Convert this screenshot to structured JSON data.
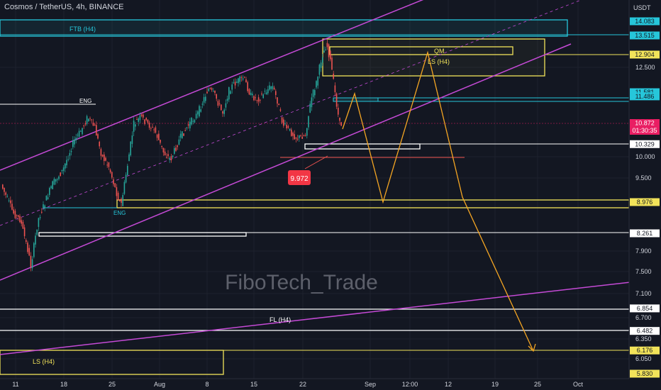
{
  "header": {
    "symbol_title": "Cosmos / TetherUS, 4h, BINANCE",
    "currency": "USDT"
  },
  "watermark": "FiboTech_Trade",
  "colors": {
    "background": "#131722",
    "candle_up": "#26a69a",
    "candle_down": "#ef5350",
    "channel": "#c54ad6",
    "zone_yellow": "#f2e35a",
    "zone_cyan": "#26c6da",
    "projection": "#f5a623",
    "white_zone": "#ffffff",
    "current_price_bg": "#e91e63"
  },
  "chart_data": {
    "type": "candlestick",
    "symbol": "ATOMUSDT",
    "timeframe": "4h",
    "x_ticks": [
      "11",
      "18",
      "25",
      "Aug",
      "8",
      "15",
      "22",
      "Sep",
      "12:00",
      "12",
      "19",
      "25",
      "Oct"
    ],
    "y_ticks": [
      12.5,
      10.0,
      9.5,
      7.9,
      7.5,
      7.1,
      6.7,
      6.35,
      6.05
    ],
    "y_tick_labels": [
      "12.500",
      "10.000",
      "9.500",
      "7.900",
      "7.500",
      "7.100",
      "6.700",
      "6.350",
      "6.050"
    ],
    "price_tags": [
      {
        "label": "14.083",
        "value": 14.083,
        "style": "cyan"
      },
      {
        "label": "13.515",
        "value": 13.515,
        "style": "cyan"
      },
      {
        "label": "12.904",
        "value": 12.904,
        "style": "yellow"
      },
      {
        "label": "11.581",
        "value": 11.581,
        "style": "cyan"
      },
      {
        "label": "11.486",
        "value": 11.486,
        "style": "cyan"
      },
      {
        "label": "10.872",
        "value": 10.872,
        "style": "current",
        "countdown": "01:30:35"
      },
      {
        "label": "10.329",
        "value": 10.329,
        "style": "white"
      },
      {
        "label": "8.976",
        "value": 8.976,
        "style": "yellow"
      },
      {
        "label": "8.261",
        "value": 8.261,
        "style": "white"
      },
      {
        "label": "6.854",
        "value": 6.854,
        "style": "white"
      },
      {
        "label": "6.482",
        "value": 6.482,
        "style": "white"
      },
      {
        "label": "6.176",
        "value": 6.176,
        "style": "yellow"
      },
      {
        "label": "5.830",
        "value": 5.83,
        "style": "yellow"
      }
    ],
    "annotations": {
      "ftb": "FTB (H4)",
      "qm": "QM",
      "ls_top": "LS (H4)",
      "eng_top": "ENG",
      "eng_bottom": "ENG",
      "fl": "FL (H4)",
      "ls_bottom": "LS (H4)",
      "low_label": "9.972"
    }
  }
}
